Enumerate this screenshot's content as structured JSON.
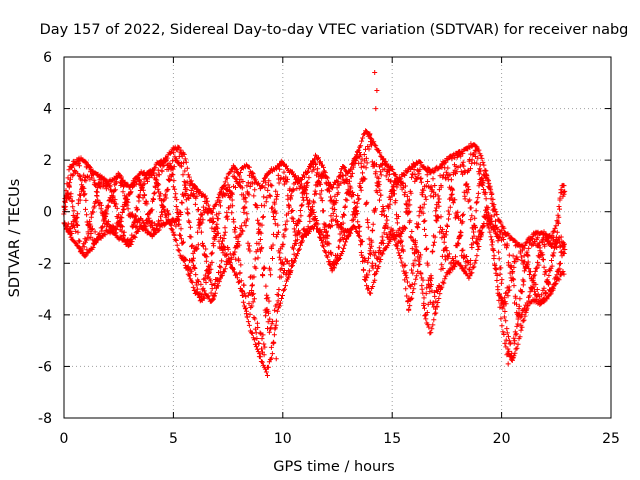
{
  "chart_data": {
    "type": "scatter",
    "title": "Day 157 of 2022, Sidereal Day-to-day VTEC variation (SDTVAR) for receiver nabg",
    "xlabel": "GPS time / hours",
    "ylabel": "SDTVAR / TECUs",
    "xlim": [
      0,
      25
    ],
    "ylim": [
      -8,
      6
    ],
    "xticks": [
      0,
      5,
      10,
      15,
      20,
      25
    ],
    "yticks": [
      -8,
      -6,
      -4,
      -2,
      0,
      2,
      4,
      6
    ],
    "grid": true,
    "marker": "+",
    "color": "#ff0000",
    "series": [
      {
        "name": "SDTVAR",
        "envelope_x": [
          0.0,
          0.25,
          0.5,
          0.75,
          1.0,
          1.25,
          1.5,
          1.75,
          2.0,
          2.25,
          2.5,
          2.75,
          3.0,
          3.25,
          3.5,
          3.75,
          4.0,
          4.25,
          4.5,
          4.75,
          5.0,
          5.25,
          5.5,
          5.75,
          6.0,
          6.25,
          6.5,
          6.75,
          7.0,
          7.25,
          7.5,
          7.75,
          8.0,
          8.25,
          8.5,
          8.75,
          9.0,
          9.25,
          9.5,
          9.75,
          10.0,
          10.25,
          10.5,
          10.75,
          11.0,
          11.25,
          11.5,
          11.75,
          12.0,
          12.25,
          12.5,
          12.75,
          13.0,
          13.25,
          13.5,
          13.75,
          14.0,
          14.25,
          14.5,
          14.75,
          15.0,
          15.25,
          15.5,
          15.75,
          16.0,
          16.25,
          16.5,
          16.75,
          17.0,
          17.25,
          17.5,
          17.75,
          18.0,
          18.25,
          18.5,
          18.75,
          19.0,
          19.25,
          19.5,
          19.75,
          20.0,
          20.25,
          20.5,
          20.75,
          21.0,
          21.25,
          21.5,
          21.75,
          22.0,
          22.25,
          22.5,
          22.75,
          22.9
        ],
        "envelope_hi": [
          0.3,
          1.8,
          2.0,
          2.1,
          2.0,
          1.7,
          1.5,
          1.4,
          1.2,
          1.3,
          1.5,
          1.2,
          1.0,
          1.3,
          1.6,
          1.5,
          1.7,
          1.9,
          2.0,
          2.2,
          2.6,
          2.5,
          2.3,
          1.3,
          1.0,
          0.8,
          0.6,
          0.0,
          0.5,
          1.0,
          1.5,
          1.8,
          1.5,
          1.9,
          1.7,
          1.3,
          1.0,
          1.5,
          1.7,
          1.8,
          2.0,
          1.7,
          1.5,
          1.3,
          1.5,
          1.8,
          2.2,
          2.0,
          1.4,
          1.0,
          1.3,
          1.8,
          1.6,
          2.1,
          2.5,
          3.2,
          3.0,
          2.6,
          2.2,
          1.9,
          1.7,
          1.3,
          1.5,
          1.7,
          1.9,
          2.0,
          1.8,
          1.6,
          1.7,
          1.9,
          2.1,
          2.2,
          2.3,
          2.4,
          2.6,
          2.7,
          2.4,
          1.7,
          0.9,
          0.0,
          -0.5,
          -0.8,
          -1.0,
          -1.2,
          -1.3,
          -1.0,
          -0.8,
          -0.7,
          -0.8,
          -0.9,
          -0.5,
          1.1,
          1.0
        ],
        "envelope_lo": [
          -0.5,
          -0.9,
          -1.3,
          -1.6,
          -1.8,
          -1.5,
          -1.2,
          -1.0,
          -0.8,
          -0.9,
          -1.1,
          -1.2,
          -1.4,
          -1.0,
          -0.6,
          -0.8,
          -1.0,
          -0.8,
          -0.6,
          -0.4,
          -0.9,
          -1.6,
          -2.0,
          -2.6,
          -3.2,
          -3.5,
          -3.3,
          -3.6,
          -3.0,
          -2.5,
          -2.0,
          -2.3,
          -2.8,
          -3.7,
          -4.6,
          -5.2,
          -5.8,
          -6.3,
          -5.7,
          -4.0,
          -3.2,
          -2.6,
          -2.0,
          -1.5,
          -1.0,
          -0.8,
          -0.6,
          -1.2,
          -1.8,
          -2.3,
          -2.0,
          -1.6,
          -1.0,
          -0.6,
          -1.0,
          -2.7,
          -3.3,
          -2.5,
          -1.8,
          -1.4,
          -1.0,
          -1.5,
          -2.2,
          -3.9,
          -3.0,
          -2.0,
          -4.2,
          -4.8,
          -3.9,
          -3.0,
          -2.5,
          -2.3,
          -2.0,
          -2.3,
          -2.6,
          -2.2,
          -1.2,
          -0.3,
          -1.0,
          -2.5,
          -4.4,
          -5.6,
          -5.8,
          -5.2,
          -4.3,
          -3.6,
          -3.5,
          -3.6,
          -3.5,
          -3.3,
          -2.8,
          -2.5,
          -2.4
        ],
        "outliers": [
          {
            "x": 14.2,
            "y": 5.4
          },
          {
            "x": 14.3,
            "y": 4.7
          },
          {
            "x": 14.25,
            "y": 4.0
          },
          {
            "x": 9.3,
            "y": -6.35
          },
          {
            "x": 9.7,
            "y": -5.7
          },
          {
            "x": 20.3,
            "y": -5.9
          }
        ]
      }
    ]
  }
}
